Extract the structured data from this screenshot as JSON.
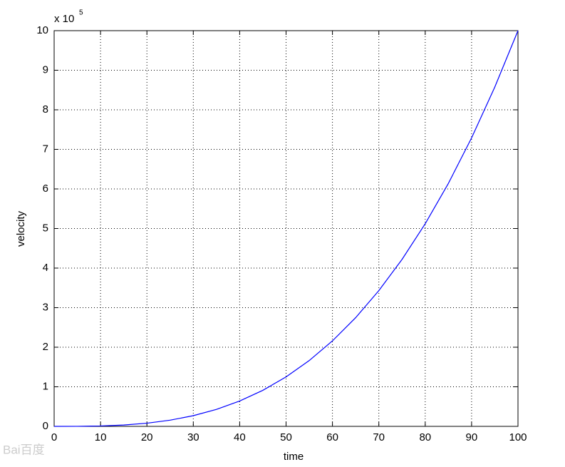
{
  "chart_data": {
    "type": "line",
    "xlabel": "time",
    "ylabel": "velocity",
    "y_multiplier": {
      "base": "x 10",
      "exponent": "5"
    },
    "watermark": "Bai百度",
    "x": [
      0,
      5,
      10,
      15,
      20,
      25,
      30,
      35,
      40,
      45,
      50,
      55,
      60,
      65,
      70,
      75,
      80,
      85,
      90,
      95,
      100
    ],
    "series": [
      {
        "name": "velocity",
        "color": "#0000ff",
        "values": [
          0,
          0.00125,
          0.01,
          0.03375,
          0.08,
          0.15625,
          0.27,
          0.42875,
          0.64,
          0.91125,
          1.25,
          1.66375,
          2.16,
          2.74625,
          3.43,
          4.21875,
          5.12,
          6.14125,
          7.29,
          8.57375,
          10
        ]
      }
    ],
    "xlim": [
      0,
      100
    ],
    "xticks": [
      0,
      10,
      20,
      30,
      40,
      50,
      60,
      70,
      80,
      90,
      100
    ],
    "ylim": [
      0,
      10
    ],
    "yticks": [
      0,
      1,
      2,
      3,
      4,
      5,
      6,
      7,
      8,
      9,
      10
    ],
    "grid": true
  }
}
